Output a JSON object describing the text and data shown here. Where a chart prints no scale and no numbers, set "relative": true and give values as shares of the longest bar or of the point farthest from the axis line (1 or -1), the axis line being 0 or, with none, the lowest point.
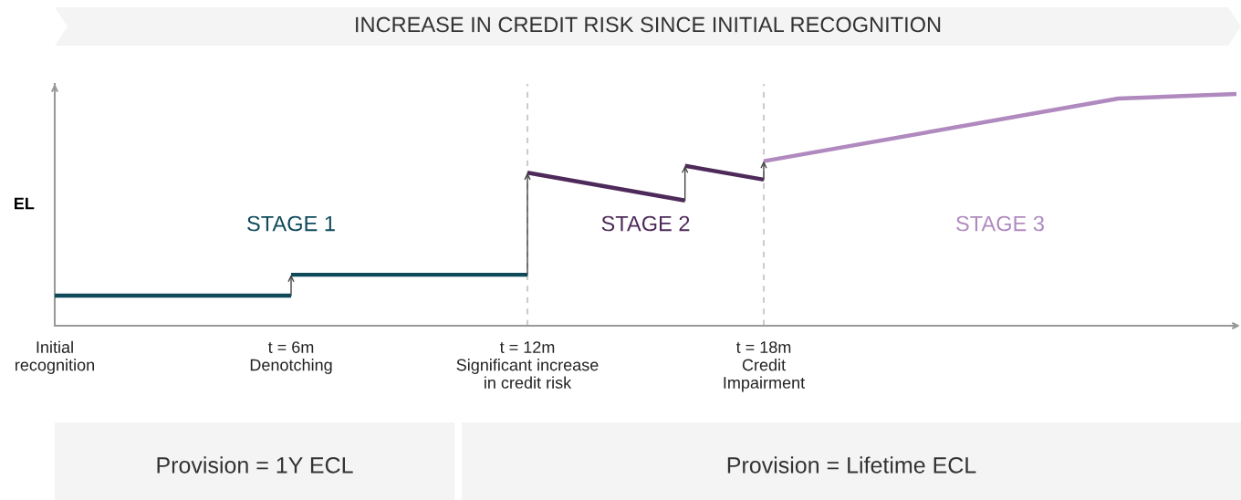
{
  "chart_data": {
    "type": "line",
    "relative": true,
    "title": "INCREASE IN CREDIT RISK SINCE INITIAL RECOGNITION",
    "ylabel": "EL",
    "xlim": [
      0,
      30
    ],
    "xticks": [
      {
        "value": 0,
        "label": "Initial\nrecognition"
      },
      {
        "value": 6,
        "label": "t = 6m\nDenotching"
      },
      {
        "value": 12,
        "label": "t = 12m\nSignificant increase\nin credit risk"
      },
      {
        "value": 18,
        "label": "t = 18m\nCredit\nImpairment"
      }
    ],
    "series": [
      {
        "name": "STAGE 1",
        "color": "#0e4a5a",
        "x": [
          0,
          6,
          6,
          12
        ],
        "values": [
          0.13,
          0.13,
          0.22,
          0.22
        ]
      },
      {
        "name": "STAGE 2",
        "color": "#4e2a5a",
        "x": [
          12,
          16,
          16,
          18
        ],
        "values": [
          0.66,
          0.54,
          0.69,
          0.63
        ]
      },
      {
        "name": "STAGE 3",
        "color": "#b08abf",
        "x": [
          18,
          27,
          30
        ],
        "values": [
          0.71,
          0.98,
          1
        ]
      }
    ],
    "ref_lines": [
      {
        "axis": "x",
        "value": 12,
        "color": "#cccccc",
        "line_style": "dashed"
      },
      {
        "axis": "x",
        "value": 18,
        "color": "#cccccc",
        "line_style": "dashed"
      }
    ],
    "annotations": [
      "Provision = 1Y ECL",
      "Provision = Lifetime ECL"
    ],
    "grid": false,
    "legend": false
  }
}
